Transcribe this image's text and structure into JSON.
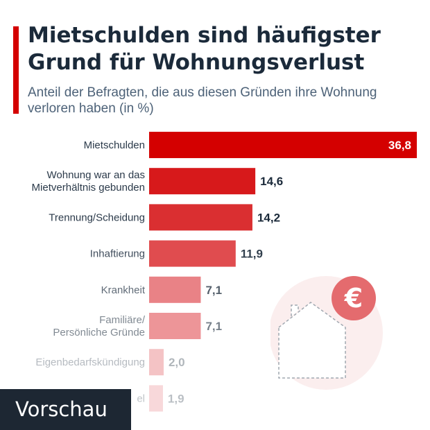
{
  "title": "Mietschulden sind häufigster Grund für Wohnungsverlust",
  "subtitle": "Anteil der Befragten, die aus diesen Gründen ihre Wohnung verloren haben (in %)",
  "preview_label": "Vorschau",
  "colors": {
    "accent": "#d40000",
    "bars": [
      "#d40000",
      "#d7191b",
      "#da2f31",
      "#e04c4f",
      "#e98286",
      "#ed9598",
      "#f4c3c5",
      "#f8d8da"
    ],
    "value_text": "#1b2a3a",
    "label_text": "#2b3a4a"
  },
  "illustration": {
    "icons": [
      "euro-icon",
      "house-icon"
    ]
  },
  "chart_data": {
    "type": "bar",
    "orientation": "horizontal",
    "title": "Mietschulden sind häufigster Grund für Wohnungsverlust",
    "subtitle": "Anteil der Befragten, die aus diesen Gründen ihre Wohnung verloren haben (in %)",
    "xlabel": "",
    "ylabel": "",
    "xlim": [
      0,
      36.8
    ],
    "grid": false,
    "categories": [
      [
        "Mietschulden"
      ],
      [
        "Wohnung war an das",
        "Mietverhältnis gebunden"
      ],
      [
        "Trennung/Scheidung"
      ],
      [
        "Inhaftierung"
      ],
      [
        "Krankheit"
      ],
      [
        "Familiäre/",
        "Persönliche Gründe"
      ],
      [
        "Eigenbedarfskündigung"
      ],
      [
        "el"
      ]
    ],
    "values": [
      36.8,
      14.6,
      14.2,
      11.9,
      7.1,
      7.1,
      2.0,
      1.9
    ],
    "value_labels": [
      "36,8",
      "14,6",
      "14,2",
      "11,9",
      "7,1",
      "7,1",
      "2,0",
      "1,9"
    ]
  }
}
